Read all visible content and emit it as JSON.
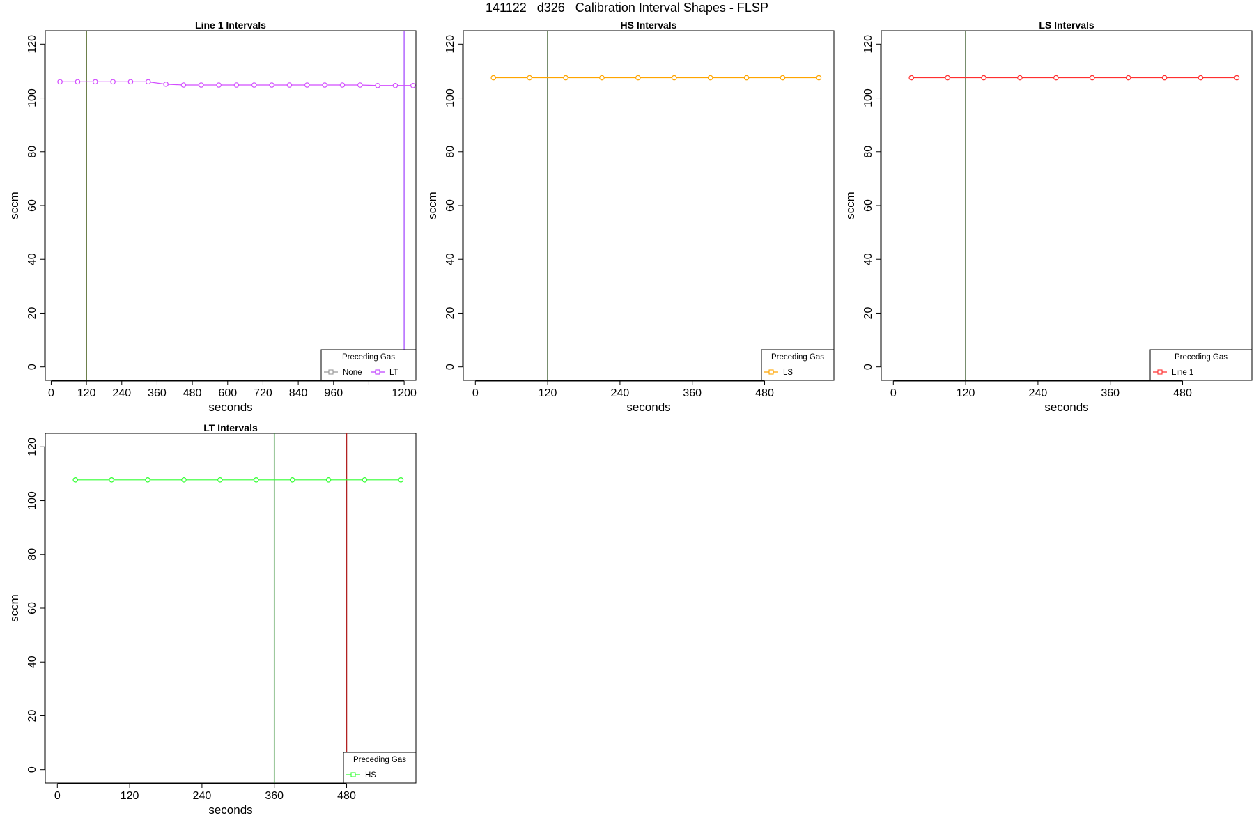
{
  "figure": {
    "title": "141122   d326   Calibration Interval Shapes - FLSP"
  },
  "chart_data": [
    {
      "type": "line",
      "title": "Line 1 Intervals",
      "xlabel": "seconds",
      "ylabel": "sccm",
      "xlim": [
        -20,
        1240
      ],
      "ylim": [
        -5,
        125
      ],
      "xticks": [
        0,
        120,
        240,
        360,
        480,
        600,
        720,
        840,
        960,
        1080,
        1200
      ],
      "xtick_labels": [
        "0",
        "120",
        "240",
        "360",
        "480",
        "600",
        "720",
        "840",
        "960",
        "",
        "1200"
      ],
      "yticks": [
        0,
        20,
        40,
        60,
        80,
        100,
        120
      ],
      "ytick_labels": [
        "0",
        "20",
        "40",
        "60",
        "80",
        "100",
        "120"
      ],
      "vlines": [
        {
          "x": 120,
          "color": "#556b2f"
        },
        {
          "x": 1200,
          "color": "#b266ff"
        }
      ],
      "legend": {
        "title": "Preceding Gas",
        "position": "bottom-right",
        "entries": [
          {
            "name": "None",
            "color": "#999999"
          },
          {
            "name": "LT",
            "color": "#bf40ff"
          }
        ]
      },
      "series": [
        {
          "name": "LT",
          "color": "#d24dff",
          "x": [
            30,
            90,
            150,
            210,
            270,
            330,
            390,
            450,
            510,
            570,
            630,
            690,
            750,
            810,
            870,
            930,
            990,
            1050,
            1110,
            1170,
            1230
          ],
          "values": [
            106.0,
            106.0,
            106.0,
            106.0,
            106.0,
            106.0,
            105.1,
            104.8,
            104.8,
            104.8,
            104.8,
            104.8,
            104.8,
            104.8,
            104.8,
            104.8,
            104.8,
            104.8,
            104.6,
            104.6,
            104.6
          ]
        }
      ]
    },
    {
      "type": "line",
      "title": "HS Intervals",
      "xlabel": "seconds",
      "ylabel": "sccm",
      "xlim": [
        -20,
        595
      ],
      "ylim": [
        -5,
        125
      ],
      "xticks": [
        0,
        120,
        240,
        360,
        480
      ],
      "xtick_labels": [
        "0",
        "120",
        "240",
        "360",
        "480"
      ],
      "yticks": [
        0,
        20,
        40,
        60,
        80,
        100,
        120
      ],
      "ytick_labels": [
        "0",
        "20",
        "40",
        "60",
        "80",
        "100",
        "120"
      ],
      "vlines": [
        {
          "x": 120,
          "color": "#2f4f1f"
        }
      ],
      "legend": {
        "title": "Preceding Gas",
        "position": "bottom-right",
        "entries": [
          {
            "name": "LS",
            "color": "#ffa500"
          }
        ]
      },
      "series": [
        {
          "name": "LS",
          "color": "#ffa500",
          "x": [
            30,
            90,
            150,
            210,
            270,
            330,
            390,
            450,
            510,
            570
          ],
          "values": [
            107.5,
            107.5,
            107.5,
            107.5,
            107.5,
            107.5,
            107.5,
            107.5,
            107.5,
            107.5
          ]
        }
      ]
    },
    {
      "type": "line",
      "title": "LS Intervals",
      "xlabel": "seconds",
      "ylabel": "sccm",
      "xlim": [
        -20,
        595
      ],
      "ylim": [
        -5,
        125
      ],
      "xticks": [
        0,
        120,
        240,
        360,
        480
      ],
      "xtick_labels": [
        "0",
        "120",
        "240",
        "360",
        "480"
      ],
      "yticks": [
        0,
        20,
        40,
        60,
        80,
        100,
        120
      ],
      "ytick_labels": [
        "0",
        "20",
        "40",
        "60",
        "80",
        "100",
        "120"
      ],
      "vlines": [
        {
          "x": 120,
          "color": "#2f4f1f"
        }
      ],
      "legend": {
        "title": "Preceding Gas",
        "position": "bottom-right",
        "entries": [
          {
            "name": "Line 1",
            "color": "#ff3030"
          }
        ]
      },
      "series": [
        {
          "name": "Line 1",
          "color": "#ff3030",
          "x": [
            30,
            90,
            150,
            210,
            270,
            330,
            390,
            450,
            510,
            570
          ],
          "values": [
            107.5,
            107.5,
            107.5,
            107.5,
            107.5,
            107.5,
            107.5,
            107.5,
            107.5,
            107.5
          ]
        }
      ]
    },
    {
      "type": "line",
      "title": "LT Intervals",
      "xlabel": "seconds",
      "ylabel": "sccm",
      "xlim": [
        -20,
        595
      ],
      "ylim": [
        -5,
        125
      ],
      "xticks": [
        0,
        120,
        240,
        360,
        480
      ],
      "xtick_labels": [
        "0",
        "120",
        "240",
        "360",
        "480"
      ],
      "yticks": [
        0,
        20,
        40,
        60,
        80,
        100,
        120
      ],
      "ytick_labels": [
        "0",
        "20",
        "40",
        "60",
        "80",
        "100",
        "120"
      ],
      "vlines": [
        {
          "x": 360,
          "color": "#2e8b2e"
        },
        {
          "x": 480,
          "color": "#b22222"
        }
      ],
      "legend": {
        "title": "Preceding Gas",
        "position": "bottom-right",
        "entries": [
          {
            "name": "HS",
            "color": "#33ff33"
          }
        ]
      },
      "series": [
        {
          "name": "HS",
          "color": "#33ff33",
          "x": [
            30,
            90,
            150,
            210,
            270,
            330,
            390,
            450,
            510,
            570
          ],
          "values": [
            107.7,
            107.7,
            107.7,
            107.7,
            107.7,
            107.7,
            107.7,
            107.7,
            107.7,
            107.7
          ]
        }
      ]
    }
  ]
}
